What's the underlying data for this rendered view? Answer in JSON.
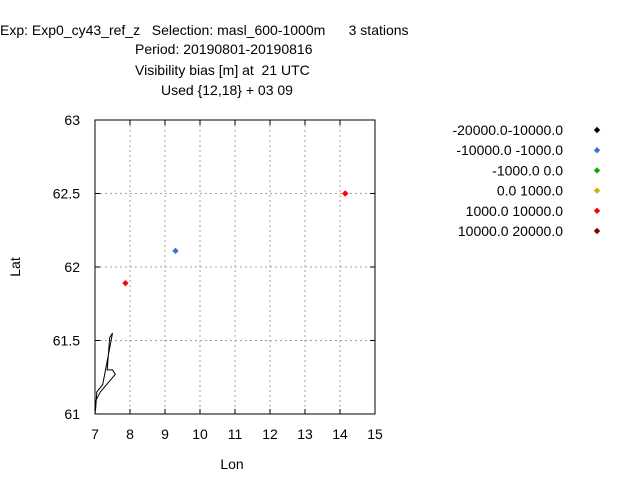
{
  "header": {
    "line1": "Exp: Exp0_cy43_ref_z   Selection: masl_600-1000m      3 stations",
    "line2": "Period: 20190801-20190816",
    "line3": "Visibility bias [m] at  21 UTC",
    "line4": "Used {12,18} + 03 09"
  },
  "chart_data": {
    "type": "scatter",
    "title": "Visibility bias [m] at  21 UTC",
    "xlabel": "Lon",
    "ylabel": "Lat",
    "xlim": [
      7,
      15
    ],
    "ylim": [
      61,
      63
    ],
    "xticks": [
      "7",
      "8",
      "9",
      "10",
      "11",
      "12",
      "13",
      "14",
      "15"
    ],
    "yticks": [
      "61",
      "61.5",
      "62",
      "62.5",
      "63"
    ],
    "grid": true,
    "legend_position": "right",
    "legend": [
      {
        "label": "-20000.0-10000.0",
        "color": "#000000"
      },
      {
        "label": "-10000.0 -1000.0",
        "color": "#3a6fd8"
      },
      {
        "label": "-1000.0 0.0",
        "color": "#00b000"
      },
      {
        "label": "0.0 1000.0",
        "color": "#c8b400"
      },
      {
        "label": "1000.0 10000.0",
        "color": "#ff0000"
      },
      {
        "label": "10000.0 20000.0",
        "color": "#8b0000"
      }
    ],
    "points": [
      {
        "x": 7.87,
        "y": 61.89,
        "class": "1000.0 10000.0",
        "color": "#ff0000"
      },
      {
        "x": 9.3,
        "y": 62.11,
        "class": "-10000.0 -1000.0",
        "color": "#3a6fd8"
      },
      {
        "x": 14.15,
        "y": 62.5,
        "class": "1000.0 10000.0",
        "color": "#ff0000"
      }
    ],
    "coastline": [
      [
        7.0,
        61.0
      ],
      [
        7.0,
        61.08
      ],
      [
        7.15,
        61.15
      ],
      [
        7.4,
        61.22
      ],
      [
        7.58,
        61.27
      ],
      [
        7.5,
        61.3
      ],
      [
        7.35,
        61.3
      ],
      [
        7.42,
        61.52
      ],
      [
        7.5,
        61.55
      ],
      [
        7.35,
        61.36
      ],
      [
        7.22,
        61.2
      ],
      [
        7.05,
        61.15
      ],
      [
        7.02,
        61.04
      ],
      [
        7.0,
        61.0
      ]
    ]
  }
}
